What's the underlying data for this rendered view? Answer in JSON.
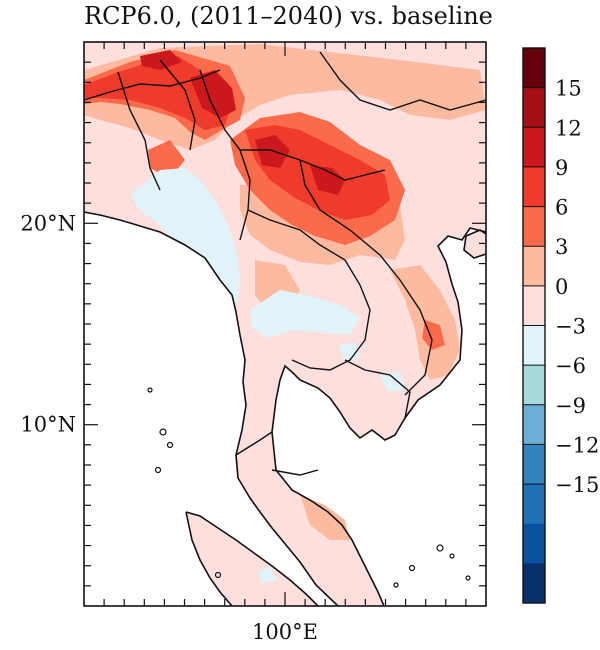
{
  "title": "RCP6.0, (2011–2040) vs. baseline",
  "lat_ticks": [
    {
      "label": "20°N",
      "lat": 20
    },
    {
      "label": "10°N",
      "lat": 10
    }
  ],
  "lon_ticks": [
    {
      "label": "100°E",
      "lon": 100
    }
  ],
  "map_extent": {
    "lon_min": 90,
    "lon_max": 110,
    "lat_min": 1,
    "lat_max": 29
  },
  "colorbar": {
    "levels": [
      15,
      12,
      9,
      6,
      3,
      0,
      -3,
      -6,
      -9,
      -12,
      -15
    ],
    "level_labels": [
      "15",
      "12",
      "9",
      "6",
      "3",
      "0",
      "−3",
      "−6",
      "−9",
      "−12",
      "−15"
    ],
    "colors": [
      "#67000d",
      "#a50f15",
      "#cb181d",
      "#ef3b2c",
      "#fb6a4a",
      "#fcbba1",
      "#fde0dd",
      "#dff3f8",
      "#a8dadc",
      "#6baed6",
      "#3182bd",
      "#2171b5",
      "#08519c",
      "#08306b"
    ]
  }
}
